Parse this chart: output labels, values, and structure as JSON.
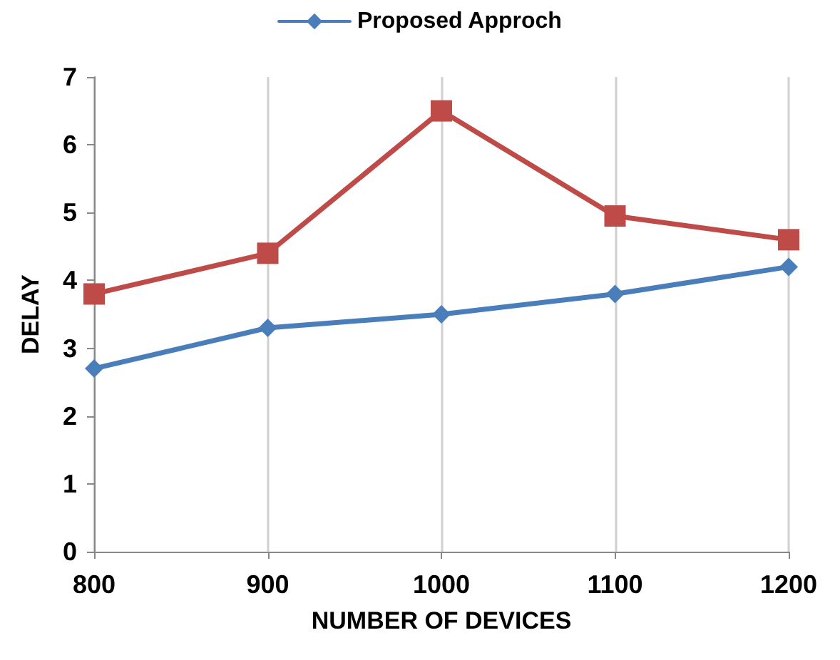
{
  "chart_data": {
    "type": "line",
    "xlabel": "NUMBER OF DEVICES",
    "ylabel": "DELAY",
    "x": [
      800,
      900,
      1000,
      1100,
      1200
    ],
    "series": [
      {
        "name": "Proposed Approch",
        "color": "#4a7ebb",
        "values": [
          2.7,
          3.3,
          3.5,
          3.8,
          4.2
        ],
        "marker": "diamond"
      },
      {
        "color": "#be4b48",
        "values": [
          3.8,
          4.4,
          6.5,
          4.95,
          4.6
        ],
        "marker": "square"
      }
    ],
    "xlim": [
      800,
      1200
    ],
    "xticks": [
      800,
      900,
      1000,
      1100,
      1200
    ],
    "ylim": [
      0,
      7
    ],
    "yticks": [
      0,
      1,
      2,
      3,
      4,
      5,
      6,
      7
    ],
    "grid": "x",
    "legend": "top",
    "line_style": "solid"
  }
}
